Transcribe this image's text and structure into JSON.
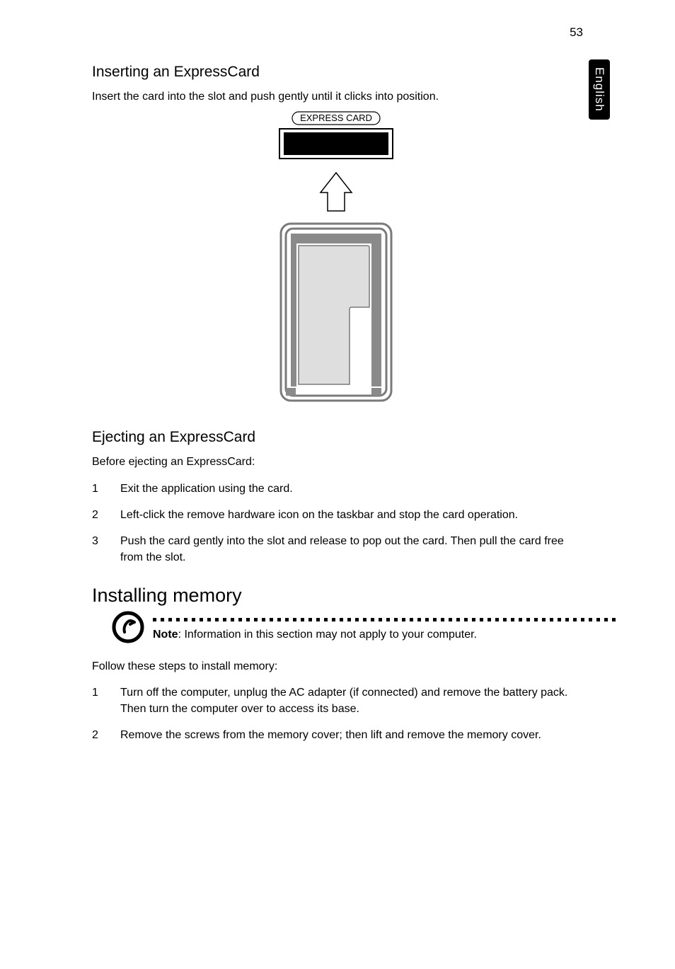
{
  "page_number": "53",
  "side_tab": "English",
  "section_insert": {
    "heading": "Inserting an ExpressCard",
    "intro": "Insert the card into the slot and push gently until it clicks into position."
  },
  "diagram": {
    "label": "EXPRESS CARD",
    "card": {
      "width": 160,
      "height": 42,
      "fill": "#000000",
      "border": "#000000"
    },
    "arrow": {
      "stroke": "#000000",
      "fill": "#ffffff"
    },
    "slot": {
      "outer_stroke": "#7a7a7a",
      "outer_fill": "#ffffff",
      "inner_band_fill": "#8a8a8a",
      "cutout_fill": "#dedede",
      "small_rect_fill": "#8a8a8a"
    }
  },
  "section_eject": {
    "heading": "Ejecting an ExpressCard",
    "intro": "Before ejecting an ExpressCard:",
    "steps": [
      "Exit the application using the card.",
      "Left-click the remove hardware icon on the taskbar and stop the card operation.",
      "Push the card gently into the slot and release to pop out the card. Then pull the card free from the slot."
    ]
  },
  "section_install": {
    "heading": "Installing memory",
    "note_label": "Note",
    "note_text": ": Information in this section may not apply to your computer.",
    "intro": "Follow these steps to install memory:",
    "steps": [
      "Turn off the computer, unplug the AC adapter (if connected) and remove the battery pack. Then turn the computer over to access its base.",
      "Remove the screws from the memory cover; then lift and remove the memory cover."
    ]
  }
}
